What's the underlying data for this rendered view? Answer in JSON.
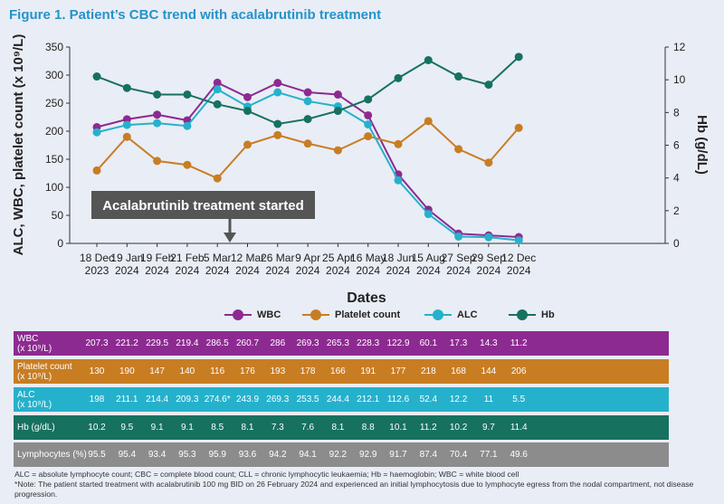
{
  "title": "Figure 1. Patient’s CBC trend with acalabrutinib treatment",
  "chart_data": {
    "type": "line",
    "x": [
      "18 Dec 2023",
      "19 Jan 2024",
      "19 Feb 2024",
      "21 Feb 2024",
      "5 Mar 2024",
      "12 Mar 2024",
      "26 Mar 2024",
      "9 Apr 2024",
      "25 Apr 2024",
      "16 May 2024",
      "18 Jun 2024",
      "15 Aug 2024",
      "27 Sep 2024",
      "29 Sep 2024",
      "12 Dec 2024"
    ],
    "x_tick_labels": [
      [
        "18 Dec",
        "2023"
      ],
      [
        "19 Jan",
        "2024"
      ],
      [
        "19 Feb",
        "2024"
      ],
      [
        "21 Feb",
        "2024"
      ],
      [
        "5 Mar",
        "2024"
      ],
      [
        "12 Mar",
        "2024"
      ],
      [
        "26 Mar",
        "2024"
      ],
      [
        "9 Apr",
        "2024"
      ],
      [
        "25 Apr",
        "2024"
      ],
      [
        "16 May",
        "2024"
      ],
      [
        "18 Jun",
        "2024"
      ],
      [
        "15 Aug",
        "2024"
      ],
      [
        "27 Sep",
        "2024"
      ],
      [
        "29 Sep",
        "2024"
      ],
      [
        "12 Dec",
        "2024"
      ]
    ],
    "xlabel": "Dates",
    "ylabel_left": "ALC, WBC, platelet count (x 10⁹/L)",
    "ylabel_right": "Hb (g/dL)",
    "ylim_left": [
      0,
      350
    ],
    "yticks_left": [
      "0",
      "50",
      "100",
      "150",
      "200",
      "250",
      "300",
      "350"
    ],
    "ylim_right": [
      0,
      12
    ],
    "yticks_right": [
      "0",
      "2",
      "4",
      "6",
      "8",
      "10",
      "12"
    ],
    "annotation": "Acalabrutinib treatment started",
    "legend_position": "bottom",
    "series": [
      {
        "name": "WBC",
        "axis": "left",
        "color": "#8d2a91",
        "values": [
          207.3,
          221.2,
          229.5,
          219.4,
          286.5,
          260.7,
          286,
          269.3,
          265.3,
          228.3,
          122.9,
          60.1,
          17.3,
          14.3,
          11.2
        ]
      },
      {
        "name": "Platelet count",
        "axis": "left",
        "color": "#c87d23",
        "values": [
          130,
          190,
          147,
          140,
          116,
          176,
          193,
          178,
          166,
          191,
          177,
          218,
          168,
          144,
          206
        ]
      },
      {
        "name": "ALC",
        "axis": "left",
        "color": "#25b1cc",
        "values": [
          198,
          211.1,
          214.4,
          209.3,
          274.6,
          243.9,
          269.3,
          253.5,
          244.4,
          212.1,
          112.6,
          52.4,
          12.2,
          11,
          5.5
        ]
      },
      {
        "name": "Hb",
        "axis": "right",
        "color": "#17715f",
        "values": [
          10.2,
          9.5,
          9.1,
          9.1,
          8.5,
          8.1,
          7.3,
          7.6,
          8.1,
          8.8,
          10.1,
          11.2,
          10.2,
          9.7,
          11.4
        ]
      }
    ]
  },
  "table": {
    "rows": [
      {
        "label": [
          "WBC",
          "(x 10⁹/L)"
        ],
        "color": "#8d2a91",
        "values": [
          "207.3",
          "221.2",
          "229.5",
          "219.4",
          "286.5",
          "260.7",
          "286",
          "269.3",
          "265.3",
          "228.3",
          "122.9",
          "60.1",
          "17.3",
          "14.3",
          "11.2"
        ]
      },
      {
        "label": [
          "Platelet count",
          "(x 10⁹/L)"
        ],
        "color": "#c87d23",
        "values": [
          "130",
          "190",
          "147",
          "140",
          "116",
          "176",
          "193",
          "178",
          "166",
          "191",
          "177",
          "218",
          "168",
          "144",
          "206"
        ]
      },
      {
        "label": [
          "ALC",
          "(x 10⁹/L)"
        ],
        "color": "#25b1cc",
        "values": [
          "198",
          "211.1",
          "214.4",
          "209.3",
          "274.6*",
          "243.9",
          "269.3",
          "253.5",
          "244.4",
          "212.1",
          "112.6",
          "52.4",
          "12.2",
          "11",
          "5.5"
        ]
      },
      {
        "label": [
          "Hb (g/dL)"
        ],
        "color": "#17715f",
        "values": [
          "10.2",
          "9.5",
          "9.1",
          "9.1",
          "8.5",
          "8.1",
          "7.3",
          "7.6",
          "8.1",
          "8.8",
          "10.1",
          "11.2",
          "10.2",
          "9.7",
          "11.4"
        ]
      },
      {
        "label": [
          "Lymphocytes (%)"
        ],
        "color": "#8c8c8c",
        "values": [
          "95.5",
          "95.4",
          "93.4",
          "95.3",
          "95.9",
          "93.6",
          "94.2",
          "94.1",
          "92.2",
          "92.9",
          "91.7",
          "87.4",
          "70.4",
          "77.1",
          "49.6"
        ]
      }
    ]
  },
  "footnotes": {
    "abbreviations": "ALC = absolute lymphocyte count; CBC = complete blood count; CLL = chronic lymphocytic leukaemia; Hb = haemoglobin; WBC = white blood cell",
    "note": "*Note: The patient started treatment with acalabrutinib 100 mg BID on 26 February 2024 and experienced an initial lymphocytosis due to lymphocyte egress from the nodal compartment, not disease progression."
  }
}
